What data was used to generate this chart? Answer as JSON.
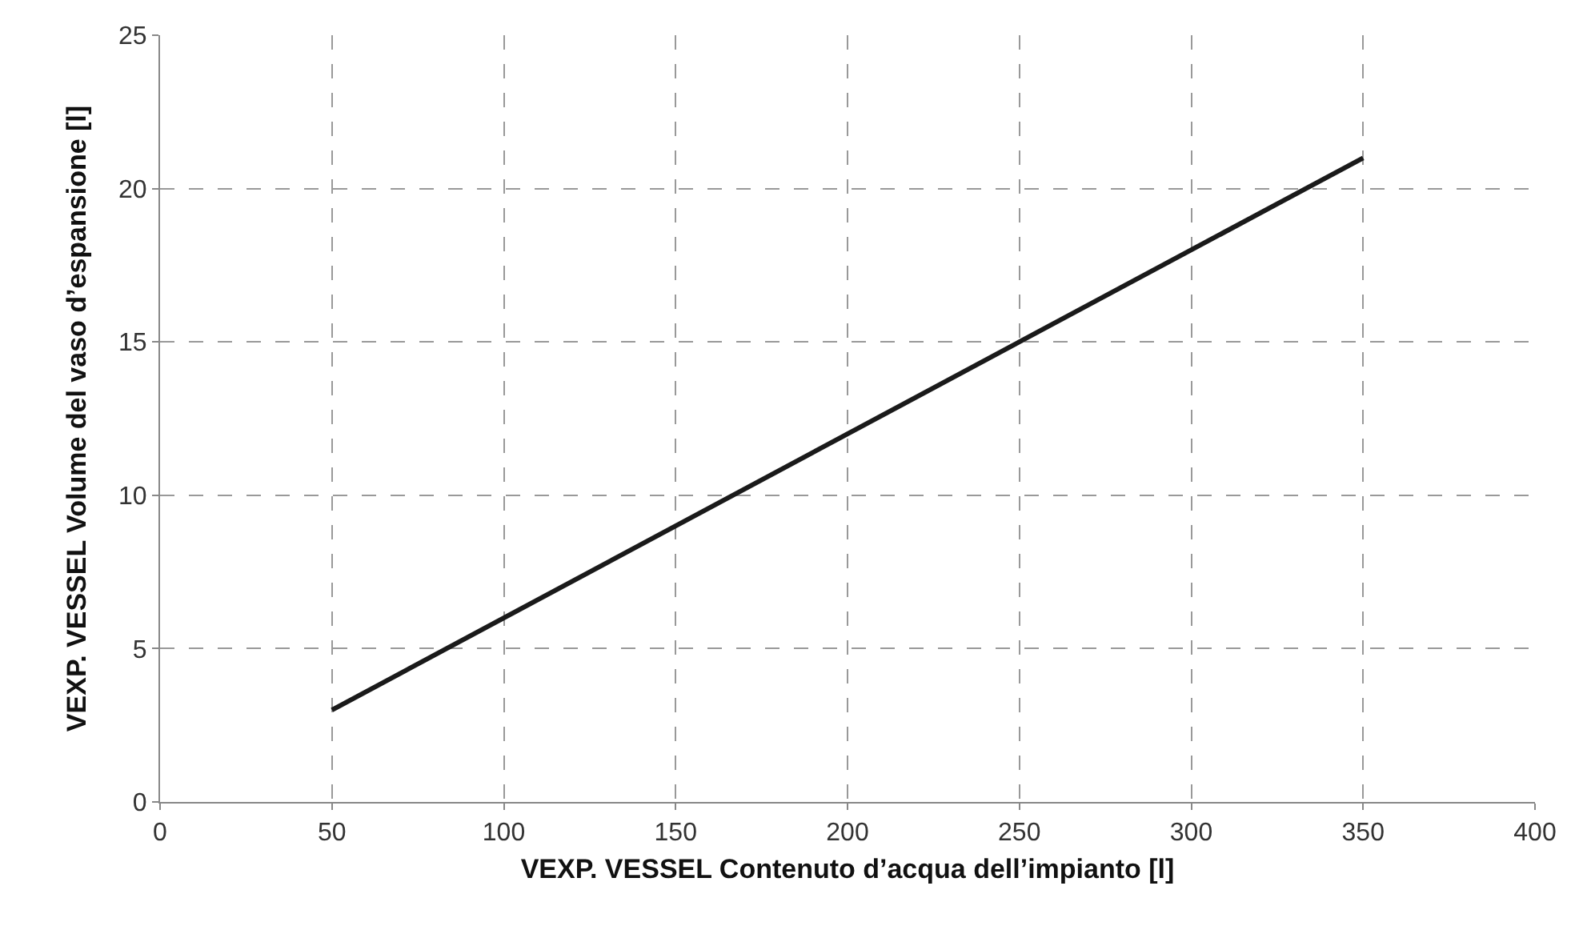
{
  "chart_data": {
    "type": "line",
    "xlabel": "VEXP. VESSEL Contenuto d’acqua dell’impianto [l]",
    "ylabel": "VEXP. VESSEL Volume del vaso d’espansione [l]",
    "x": [
      50,
      350
    ],
    "series": [
      {
        "color": "#1a1a1a",
        "values": [
          3,
          21
        ]
      }
    ],
    "xlim": [
      0,
      400
    ],
    "xticks": [
      0,
      50,
      100,
      150,
      200,
      250,
      300,
      350,
      400
    ],
    "ylim": [
      0,
      25
    ],
    "yticks": [
      0,
      5,
      10,
      15,
      20,
      25
    ],
    "grid": true,
    "legend": false,
    "marker": "none",
    "line_style": "solid"
  }
}
